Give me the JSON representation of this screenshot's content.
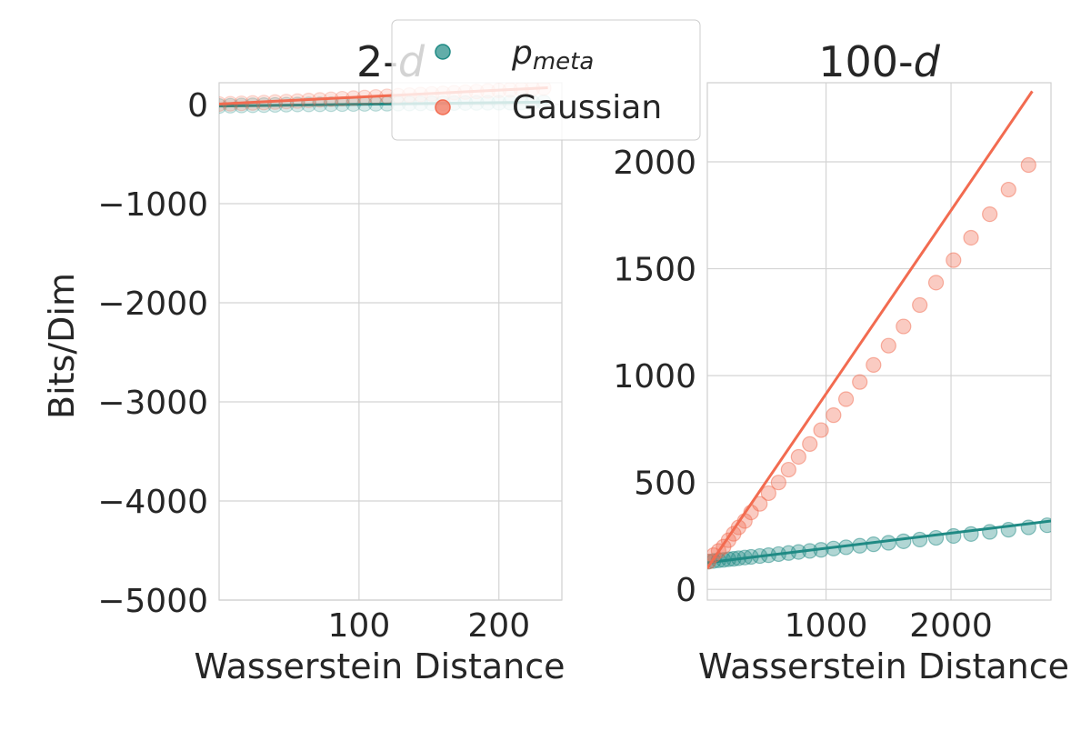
{
  "chart_data": [
    {
      "type": "scatter",
      "title": "2-d",
      "xlabel": "Wasserstein Distance",
      "ylabel": "Bits/Dim",
      "xlim": [
        0,
        245
      ],
      "ylim": [
        -5000,
        220
      ],
      "xticks": [
        100,
        200
      ],
      "yticks": [
        0,
        -1000,
        -2000,
        -3000,
        -4000,
        -5000
      ],
      "ytick_labels": [
        "0",
        "−1000",
        "−2000",
        "−3000",
        "−4000",
        "−5000"
      ],
      "grid": true,
      "series": [
        {
          "name": "p_meta",
          "color": "#1f8a84",
          "x": [
            0,
            8,
            16,
            24,
            32,
            40,
            48,
            56,
            64,
            72,
            80,
            88,
            96,
            104,
            112,
            120,
            128,
            136,
            144,
            152,
            160,
            168,
            176,
            184,
            192,
            200,
            208,
            216,
            224,
            232
          ],
          "y": [
            -15,
            -12,
            -10,
            -8,
            -6,
            -4,
            -2,
            0,
            1,
            2,
            3,
            4,
            5,
            6,
            7,
            8,
            9,
            10,
            11,
            12,
            13,
            14,
            15,
            16,
            17,
            18,
            19,
            20,
            21,
            22
          ],
          "fit": [
            [
              0,
              -15
            ],
            [
              235,
              25
            ]
          ]
        },
        {
          "name": "Gaussian",
          "color": "#f26b50",
          "x": [
            0,
            8,
            16,
            24,
            32,
            40,
            48,
            56,
            64,
            72,
            80,
            88,
            96,
            104,
            112,
            120,
            128,
            136,
            144,
            152,
            160,
            168,
            176,
            184,
            192,
            200,
            208,
            216,
            224,
            232
          ],
          "y": [
            5,
            8,
            12,
            16,
            20,
            25,
            30,
            35,
            41,
            47,
            53,
            59,
            65,
            71,
            77,
            83,
            89,
            95,
            101,
            107,
            113,
            119,
            125,
            131,
            137,
            143,
            149,
            155,
            161,
            167
          ],
          "fit": [
            [
              0,
              5
            ],
            [
              235,
              170
            ]
          ]
        }
      ]
    },
    {
      "type": "scatter",
      "title": "100-d",
      "xlabel": "Wasserstein Distance",
      "ylabel": "",
      "xlim": [
        50,
        2800
      ],
      "ylim": [
        -50,
        2370
      ],
      "xticks": [
        1000,
        2000
      ],
      "yticks": [
        0,
        500,
        1000,
        1500,
        2000
      ],
      "grid": true,
      "series": [
        {
          "name": "p_meta",
          "color": "#1f8a84",
          "x": [
            60,
            100,
            140,
            180,
            220,
            260,
            300,
            350,
            400,
            470,
            540,
            620,
            700,
            780,
            870,
            960,
            1060,
            1160,
            1270,
            1380,
            1500,
            1620,
            1750,
            1880,
            2020,
            2160,
            2310,
            2460,
            2620,
            2770
          ],
          "y": [
            130,
            133,
            136,
            138,
            141,
            143,
            146,
            149,
            152,
            156,
            160,
            165,
            170,
            175,
            180,
            185,
            191,
            197,
            204,
            211,
            218,
            225,
            233,
            241,
            250,
            259,
            269,
            279,
            290,
            300
          ],
          "fit": [
            [
              50,
              125
            ],
            [
              2800,
              320
            ]
          ]
        },
        {
          "name": "Gaussian",
          "color": "#f26b50",
          "x": [
            60,
            100,
            140,
            180,
            220,
            260,
            300,
            350,
            400,
            470,
            540,
            620,
            700,
            780,
            870,
            960,
            1060,
            1160,
            1270,
            1380,
            1500,
            1620,
            1750,
            1880,
            2020,
            2160,
            2310,
            2460,
            2620
          ],
          "y": [
            130,
            160,
            180,
            200,
            230,
            260,
            290,
            320,
            360,
            400,
            450,
            500,
            560,
            620,
            680,
            745,
            815,
            890,
            970,
            1050,
            1140,
            1230,
            1330,
            1435,
            1540,
            1645,
            1755,
            1870,
            1985
          ],
          "fit": [
            [
              50,
              100
            ],
            [
              2650,
              2330
            ]
          ]
        }
      ]
    }
  ],
  "legend": {
    "items": [
      {
        "name": "p",
        "sub": "meta",
        "color": "#1f8a84"
      },
      {
        "name": "Gaussian",
        "color": "#f26b50"
      }
    ],
    "placement": "top-center"
  }
}
